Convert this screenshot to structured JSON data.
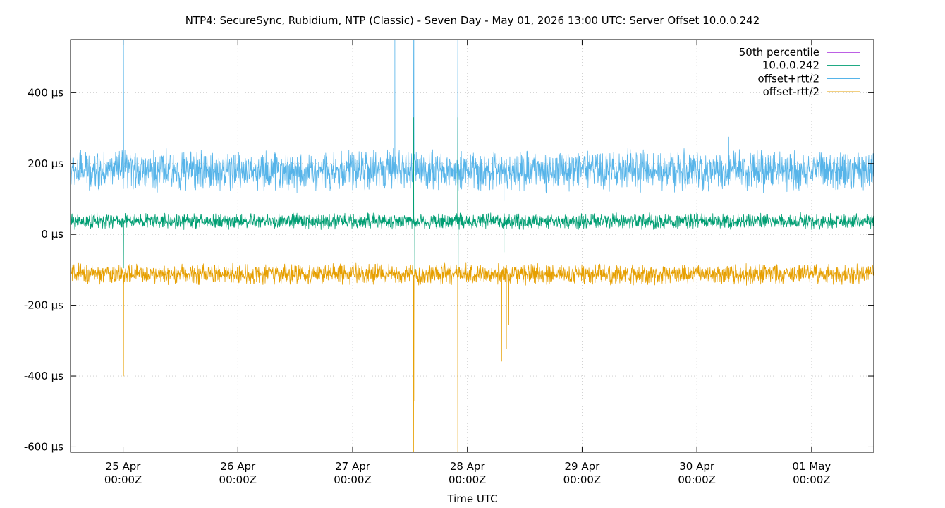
{
  "chart_data": {
    "type": "line",
    "title": "NTP4: SecureSync, Rubidium, NTP (Classic) - Seven Day - May 01, 2026 13:00 UTC: Server Offset 10.0.0.242",
    "xlabel": "Time UTC",
    "ylabel": "",
    "ylim": [
      -615,
      550
    ],
    "xlim": [
      "2026-04-24T13:00Z",
      "2026-05-01T13:00Z"
    ],
    "grid": true,
    "legend_position": "top-right",
    "y_ticks": [
      {
        "value": 400,
        "label": "400 µs"
      },
      {
        "value": 200,
        "label": "200 µs"
      },
      {
        "value": 0,
        "label": "0 µs"
      },
      {
        "value": -200,
        "label": "-200 µs"
      },
      {
        "value": -400,
        "label": "-400 µs"
      },
      {
        "value": -600,
        "label": "-600 µs"
      }
    ],
    "x_ticks": [
      {
        "value": "2026-04-25T00:00Z",
        "label": [
          "25 Apr",
          "00:00Z"
        ]
      },
      {
        "value": "2026-04-26T00:00Z",
        "label": [
          "26 Apr",
          "00:00Z"
        ]
      },
      {
        "value": "2026-04-27T00:00Z",
        "label": [
          "27 Apr",
          "00:00Z"
        ]
      },
      {
        "value": "2026-04-28T00:00Z",
        "label": [
          "28 Apr",
          "00:00Z"
        ]
      },
      {
        "value": "2026-04-29T00:00Z",
        "label": [
          "29 Apr",
          "00:00Z"
        ]
      },
      {
        "value": "2026-04-30T00:00Z",
        "label": [
          "30 Apr",
          "00:00Z"
        ]
      },
      {
        "value": "2026-05-01T00:00Z",
        "label": [
          "01 May",
          "00:00Z"
        ]
      }
    ],
    "series": [
      {
        "name": "50th percentile",
        "color": "#9400d3",
        "value": 37
      },
      {
        "name": "10.0.0.242",
        "color": "#009e73",
        "baseline": 37,
        "noise_range": [
          -25,
          25
        ],
        "spikes": [
          {
            "t": "2026-04-25T00:05Z",
            "v": -95
          },
          {
            "t": "2026-04-27T12:45Z",
            "v": 330
          },
          {
            "t": "2026-04-27T13:00Z",
            "v": -105
          },
          {
            "t": "2026-04-27T22:00Z",
            "v": 330
          },
          {
            "t": "2026-04-27T22:05Z",
            "v": -100
          },
          {
            "t": "2026-04-28T07:40Z",
            "v": -50
          }
        ]
      },
      {
        "name": "offset+rtt/2",
        "color": "#56b4e9",
        "baseline": 180,
        "noise_range": [
          -65,
          65
        ],
        "spikes": [
          {
            "t": "2026-04-25T00:05Z",
            "v": 550
          },
          {
            "t": "2026-04-27T08:50Z",
            "v": 550
          },
          {
            "t": "2026-04-27T12:45Z",
            "v": 550
          },
          {
            "t": "2026-04-27T13:00Z",
            "v": 550
          },
          {
            "t": "2026-04-27T22:00Z",
            "v": 550
          },
          {
            "t": "2026-04-28T07:40Z",
            "v": 95
          },
          {
            "t": "2026-04-30T06:40Z",
            "v": 275
          }
        ]
      },
      {
        "name": "offset-rtt/2",
        "color": "#e69f00",
        "baseline": -115,
        "noise_range": [
          -30,
          35
        ],
        "spikes": [
          {
            "t": "2026-04-25T00:05Z",
            "v": -400
          },
          {
            "t": "2026-04-27T12:45Z",
            "v": -615
          },
          {
            "t": "2026-04-27T13:00Z",
            "v": -470
          },
          {
            "t": "2026-04-27T22:00Z",
            "v": -615
          },
          {
            "t": "2026-04-28T07:10Z",
            "v": -358
          },
          {
            "t": "2026-04-28T08:10Z",
            "v": -322
          },
          {
            "t": "2026-04-28T08:40Z",
            "v": -255
          }
        ]
      }
    ]
  }
}
